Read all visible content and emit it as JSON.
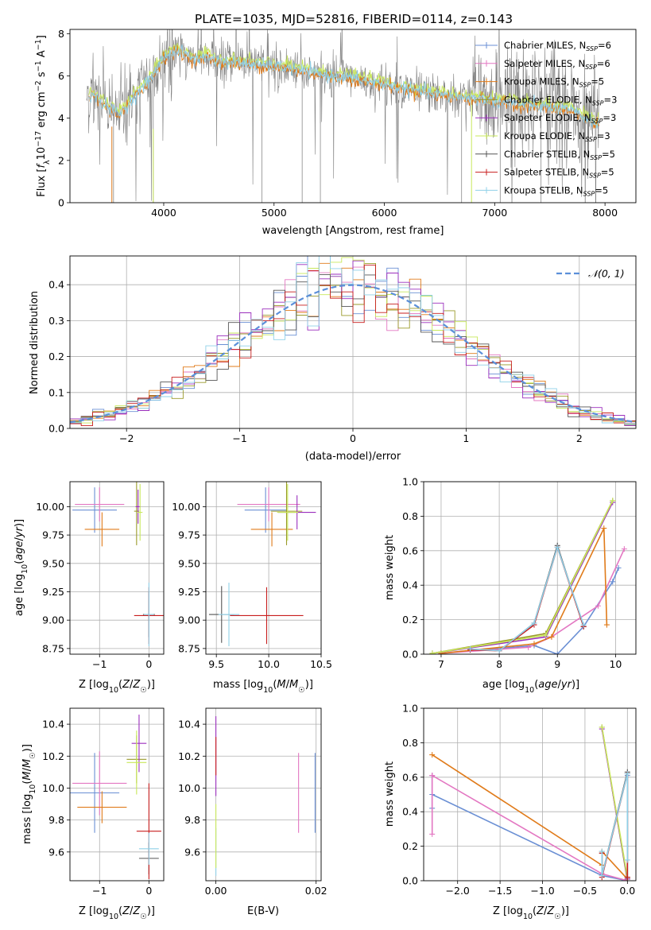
{
  "figure_title": "PLATE=1035, MJD=52816, FIBERID=0114, z=0.143",
  "colors": {
    "chabrier_miles": "#6a8fd4",
    "salpeter_miles": "#e377c2",
    "kroupa_miles": "#e07b1a",
    "chabrier_elodie": "#9a9a2a",
    "salpeter_elodie": "#9b2fbd",
    "kroupa_elodie": "#c8e85a",
    "chabrier_stelib": "#555555",
    "salpeter_stelib": "#c81e1e",
    "kroupa_stelib": "#8fd0e8",
    "data_spectrum": "#808080",
    "normal_curve": "#5b8fd9"
  },
  "chart_data": [
    {
      "id": "spectrum",
      "type": "line",
      "title": "PLATE=1035, MJD=52816, FIBERID=0114, z=0.143",
      "xlabel": "wavelength [Angstrom, rest frame]",
      "ylabel": "Flux [f_λ10^-17 erg cm^-2 s^-1 A^-1]",
      "xlim": [
        3150,
        8280
      ],
      "ylim": [
        0,
        8.2
      ],
      "xticks": [
        4000,
        5000,
        6000,
        7000,
        8000
      ],
      "yticks": [
        0,
        2,
        4,
        6,
        8
      ],
      "grid": false,
      "legend_position": "top-right",
      "legend": [
        {
          "main": "Chabrier MILES, N",
          "sub": "SSP",
          "tail": "=6",
          "color": "#6a8fd4"
        },
        {
          "main": "Salpeter MILES, N",
          "sub": "SSP",
          "tail": "=6",
          "color": "#e377c2"
        },
        {
          "main": "Kroupa MILES, N",
          "sub": "SSP",
          "tail": "=5",
          "color": "#e07b1a"
        },
        {
          "main": "Chabrier ELODIE, N",
          "sub": "SSP",
          "tail": "=3",
          "color": "#9a9a2a"
        },
        {
          "main": "Salpeter ELODIE, N",
          "sub": "SSP",
          "tail": "=3",
          "color": "#9b2fbd"
        },
        {
          "main": "Kroupa ELODIE, N",
          "sub": "SSP",
          "tail": "=3",
          "color": "#c8e85a"
        },
        {
          "main": "Chabrier STELIB, N",
          "sub": "SSP",
          "tail": "=5",
          "color": "#555555"
        },
        {
          "main": "Salpeter STELIB, N",
          "sub": "SSP",
          "tail": "=5",
          "color": "#c81e1e"
        },
        {
          "main": "Kroupa STELIB, N",
          "sub": "SSP",
          "tail": "=5",
          "color": "#8fd0e8"
        }
      ],
      "model_continuum": {
        "x": [
          3300,
          3400,
          3500,
          3600,
          3700,
          3800,
          3900,
          4000,
          4100,
          4200,
          4300,
          4400,
          4500,
          4700,
          4900,
          5100,
          5300,
          5500,
          5700,
          5900,
          6100,
          6300,
          6500,
          6700,
          6900,
          7100,
          7300,
          7500,
          7700,
          7900
        ],
        "y": [
          5.2,
          4.9,
          4.5,
          4.2,
          4.8,
          5.4,
          6.0,
          6.9,
          7.2,
          7.0,
          6.8,
          6.9,
          6.7,
          6.6,
          6.5,
          6.4,
          6.2,
          6.0,
          5.9,
          5.7,
          5.5,
          5.3,
          5.1,
          5.0,
          4.9,
          4.75,
          4.6,
          4.5,
          4.35,
          3.8
        ]
      }
    },
    {
      "id": "residuals",
      "type": "histogram",
      "xlabel": "(data-model)/error",
      "ylabel": "Normed distribution",
      "xlim": [
        -2.5,
        2.5
      ],
      "ylim": [
        0,
        0.48
      ],
      "xticks": [
        -2,
        -1,
        0,
        1,
        2
      ],
      "yticks": [
        0.0,
        0.1,
        0.2,
        0.3,
        0.4
      ],
      "grid": true,
      "legend_position": "top-right",
      "legend": [
        {
          "label": "𝒩(0, 1)",
          "style": "dashed",
          "color": "#5b8fd9"
        }
      ],
      "normal_curve": {
        "mean": 0,
        "sigma": 1
      }
    },
    {
      "id": "age_vs_Z",
      "type": "scatter",
      "xlabel": "Z [log10(Z/Z☉)]",
      "ylabel": "age [log10(age/yr)]",
      "xlim": [
        -1.6,
        0.3
      ],
      "ylim": [
        8.7,
        10.22
      ],
      "xticks": [
        -1,
        0
      ],
      "yticks": [
        8.75,
        9.0,
        9.25,
        9.5,
        9.75,
        10.0
      ],
      "grid": true,
      "points": [
        {
          "x": -1.1,
          "y": 9.97,
          "xerr": 0.45,
          "yerr": 0.2,
          "color": "#6a8fd4"
        },
        {
          "x": -1.0,
          "y": 10.02,
          "xerr": 0.5,
          "yerr": 0.15,
          "color": "#e377c2"
        },
        {
          "x": -0.95,
          "y": 9.8,
          "xerr": 0.35,
          "yerr": 0.15,
          "color": "#e07b1a"
        },
        {
          "x": -0.25,
          "y": 9.96,
          "xerr": 0.05,
          "yerr": 0.3,
          "color": "#9a9a2a"
        },
        {
          "x": -0.22,
          "y": 10.0,
          "xerr": 0.05,
          "yerr": 0.15,
          "color": "#9b2fbd"
        },
        {
          "x": -0.18,
          "y": 9.95,
          "xerr": 0.05,
          "yerr": 0.25,
          "color": "#c8e85a"
        },
        {
          "x": 0.0,
          "y": 9.05,
          "xerr": 0.12,
          "yerr": 0.2,
          "color": "#555555"
        },
        {
          "x": 0.0,
          "y": 9.04,
          "xerr": 0.3,
          "yerr": 0.25,
          "color": "#c81e1e"
        },
        {
          "x": 0.0,
          "y": 9.05,
          "xerr": 0.1,
          "yerr": 0.28,
          "color": "#8fd0e8"
        }
      ]
    },
    {
      "id": "age_vs_mass",
      "type": "scatter",
      "xlabel": "mass [log10(M/M☉)]",
      "ylabel": "",
      "xlim": [
        9.4,
        10.5
      ],
      "ylim": [
        8.7,
        10.22
      ],
      "xticks": [
        9.5,
        10.0,
        10.5
      ],
      "yticks": [
        8.75,
        9.0,
        9.25,
        9.5,
        9.75,
        10.0
      ],
      "grid": true,
      "points": [
        {
          "x": 9.97,
          "y": 9.97,
          "xerr": 0.2,
          "yerr": 0.2,
          "color": "#6a8fd4"
        },
        {
          "x": 10.0,
          "y": 10.02,
          "xerr": 0.3,
          "yerr": 0.15,
          "color": "#e377c2"
        },
        {
          "x": 10.03,
          "y": 9.8,
          "xerr": 0.2,
          "yerr": 0.15,
          "color": "#e07b1a"
        },
        {
          "x": 10.17,
          "y": 9.96,
          "xerr": 0.15,
          "yerr": 0.3,
          "color": "#9a9a2a"
        },
        {
          "x": 10.27,
          "y": 9.95,
          "xerr": 0.18,
          "yerr": 0.15,
          "color": "#9b2fbd"
        },
        {
          "x": 10.18,
          "y": 9.95,
          "xerr": 0.1,
          "yerr": 0.25,
          "color": "#c8e85a"
        },
        {
          "x": 9.55,
          "y": 9.05,
          "xerr": 0.12,
          "yerr": 0.25,
          "color": "#555555"
        },
        {
          "x": 9.98,
          "y": 9.04,
          "xerr": 0.35,
          "yerr": 0.25,
          "color": "#c81e1e"
        },
        {
          "x": 9.62,
          "y": 9.05,
          "xerr": 0.1,
          "yerr": 0.28,
          "color": "#8fd0e8"
        }
      ]
    },
    {
      "id": "weight_vs_age",
      "type": "line",
      "xlabel": "age  [log10(age/yr)]",
      "ylabel": "mass weight",
      "xlim": [
        6.7,
        10.35
      ],
      "ylim": [
        0,
        1.0
      ],
      "xticks": [
        7,
        8,
        9,
        10
      ],
      "yticks": [
        0.0,
        0.2,
        0.4,
        0.6,
        0.8,
        1.0
      ],
      "grid": true,
      "series": [
        {
          "color": "#6a8fd4",
          "x": [
            7.0,
            8.6,
            9.0,
            9.45,
            9.95,
            10.05
          ],
          "y": [
            0.005,
            0.05,
            0.0,
            0.16,
            0.42,
            0.5
          ]
        },
        {
          "color": "#e377c2",
          "x": [
            7.0,
            8.5,
            8.9,
            9.7,
            10.15
          ],
          "y": [
            0.005,
            0.04,
            0.1,
            0.28,
            0.61
          ]
        },
        {
          "color": "#e07b1a",
          "x": [
            7.0,
            8.6,
            8.9,
            9.8,
            9.85
          ],
          "y": [
            0.005,
            0.06,
            0.1,
            0.73,
            0.17
          ]
        },
        {
          "color": "#9a9a2a",
          "x": [
            6.85,
            8.8,
            9.95
          ],
          "y": [
            0.005,
            0.12,
            0.89
          ]
        },
        {
          "color": "#9b2fbd",
          "x": [
            6.85,
            8.8,
            9.95
          ],
          "y": [
            0.005,
            0.1,
            0.88
          ]
        },
        {
          "color": "#c8e85a",
          "x": [
            6.85,
            8.8,
            9.95
          ],
          "y": [
            0.005,
            0.11,
            0.89
          ]
        },
        {
          "color": "#555555",
          "x": [
            7.5,
            8.0,
            8.6,
            9.0,
            9.45
          ],
          "y": [
            0.03,
            0.02,
            0.18,
            0.63,
            0.16
          ]
        },
        {
          "color": "#c81e1e",
          "x": [
            7.5,
            8.0,
            8.6,
            9.0,
            9.45
          ],
          "y": [
            0.025,
            0.02,
            0.17,
            0.62,
            0.16
          ]
        },
        {
          "color": "#8fd0e8",
          "x": [
            7.5,
            8.0,
            8.6,
            9.0,
            9.45
          ],
          "y": [
            0.03,
            0.02,
            0.18,
            0.62,
            0.17
          ]
        }
      ]
    },
    {
      "id": "mass_vs_Z",
      "type": "scatter",
      "xlabel": "Z [log10(Z/Z☉)]",
      "ylabel": "mass [log10(M/M☉)]",
      "xlim": [
        -1.6,
        0.3
      ],
      "ylim": [
        9.42,
        10.5
      ],
      "xticks": [
        -1,
        0
      ],
      "yticks": [
        9.6,
        9.8,
        10.0,
        10.2,
        10.4
      ],
      "grid": true,
      "points": [
        {
          "x": -1.1,
          "y": 9.97,
          "xerr": 0.5,
          "yerr": 0.25,
          "color": "#6a8fd4"
        },
        {
          "x": -1.0,
          "y": 10.03,
          "xerr": 0.55,
          "yerr": 0.2,
          "color": "#e377c2"
        },
        {
          "x": -0.95,
          "y": 9.88,
          "xerr": 0.5,
          "yerr": 0.1,
          "color": "#e07b1a"
        },
        {
          "x": -0.25,
          "y": 10.18,
          "xerr": 0.2,
          "yerr": 0.15,
          "color": "#9a9a2a"
        },
        {
          "x": -0.2,
          "y": 10.28,
          "xerr": 0.15,
          "yerr": 0.18,
          "color": "#9b2fbd"
        },
        {
          "x": -0.25,
          "y": 10.16,
          "xerr": 0.2,
          "yerr": 0.2,
          "color": "#c8e85a"
        },
        {
          "x": 0.0,
          "y": 9.56,
          "xerr": 0.2,
          "yerr": 0.1,
          "color": "#555555"
        },
        {
          "x": 0.0,
          "y": 9.73,
          "xerr": 0.25,
          "yerr": 0.3,
          "color": "#c81e1e"
        },
        {
          "x": 0.0,
          "y": 9.62,
          "xerr": 0.2,
          "yerr": 0.1,
          "color": "#8fd0e8"
        }
      ]
    },
    {
      "id": "mass_vs_ebv",
      "type": "scatter",
      "xlabel": "E(B-V)",
      "ylabel": "",
      "xlim": [
        -0.002,
        0.021
      ],
      "ylim": [
        9.42,
        10.5
      ],
      "xticks": [
        0.0,
        0.02
      ],
      "xticklabels": [
        "0.00",
        "0.02"
      ],
      "yticks": [
        9.6,
        9.8,
        10.0,
        10.2,
        10.4
      ],
      "grid": true,
      "points": [
        {
          "x": 0.0,
          "y": 10.2,
          "yerr": 0.25,
          "color": "#9b2fbd"
        },
        {
          "x": 0.0,
          "y": 10.2,
          "yerr": 0.12,
          "color": "#c81e1e"
        },
        {
          "x": 0.0,
          "y": 9.6,
          "yerr": 0.15,
          "color": "#8fd0e8"
        },
        {
          "x": 0.0,
          "y": 9.7,
          "yerr": 0.2,
          "color": "#c8e85a"
        },
        {
          "x": 0.0165,
          "y": 9.97,
          "yerr": 0.25,
          "color": "#e377c2"
        },
        {
          "x": 0.0198,
          "y": 9.97,
          "yerr": 0.25,
          "color": "#6a8fd4"
        }
      ]
    },
    {
      "id": "weight_vs_Z",
      "type": "line",
      "xlabel": "Z [log10(Z/Z☉)]",
      "ylabel": "mass weight",
      "xlim": [
        -2.4,
        0.1
      ],
      "ylim": [
        0,
        1.0
      ],
      "xticks": [
        -2.0,
        -1.5,
        -1.0,
        -0.5,
        0.0
      ],
      "xticklabels": [
        "−2.0",
        "−1.5",
        "−1.0",
        "−0.5",
        "0.0"
      ],
      "yticks": [
        0.0,
        0.2,
        0.4,
        0.6,
        0.8,
        1.0
      ],
      "grid": true,
      "series": [
        {
          "color": "#6a8fd4",
          "x": [
            -2.3,
            -2.3,
            -2.3,
            -0.3,
            0.0,
            0.0
          ],
          "y": [
            0.42,
            0.61,
            0.5,
            0.03,
            0.0,
            0.61
          ]
        },
        {
          "color": "#e377c2",
          "x": [
            -2.3,
            -2.3,
            -2.3,
            -0.3,
            0.0
          ],
          "y": [
            0.27,
            0.61,
            0.61,
            0.04,
            0.0
          ]
        },
        {
          "color": "#e07b1a",
          "x": [
            -2.3,
            -0.3,
            -0.3,
            0.0
          ],
          "y": [
            0.73,
            0.09,
            0.17,
            0.01
          ]
        },
        {
          "color": "#9a9a2a",
          "x": [
            -0.3,
            0.0
          ],
          "y": [
            0.89,
            0.0
          ]
        },
        {
          "color": "#9b2fbd",
          "x": [
            -0.3,
            0.0
          ],
          "y": [
            0.88,
            0.01
          ]
        },
        {
          "color": "#c8e85a",
          "x": [
            -0.3,
            0.0
          ],
          "y": [
            0.89,
            0.02
          ]
        },
        {
          "color": "#555555",
          "x": [
            -0.3,
            -0.3,
            0.0,
            0.0
          ],
          "y": [
            0.16,
            0.03,
            0.63,
            0.02
          ]
        },
        {
          "color": "#c81e1e",
          "x": [
            -0.3,
            -0.3,
            0.0,
            0.0
          ],
          "y": [
            0.16,
            0.02,
            0.62,
            0.02
          ]
        },
        {
          "color": "#8fd0e8",
          "x": [
            -0.3,
            -0.3,
            0.0,
            0.0
          ],
          "y": [
            0.17,
            0.03,
            0.62,
            0.12
          ]
        }
      ]
    }
  ]
}
